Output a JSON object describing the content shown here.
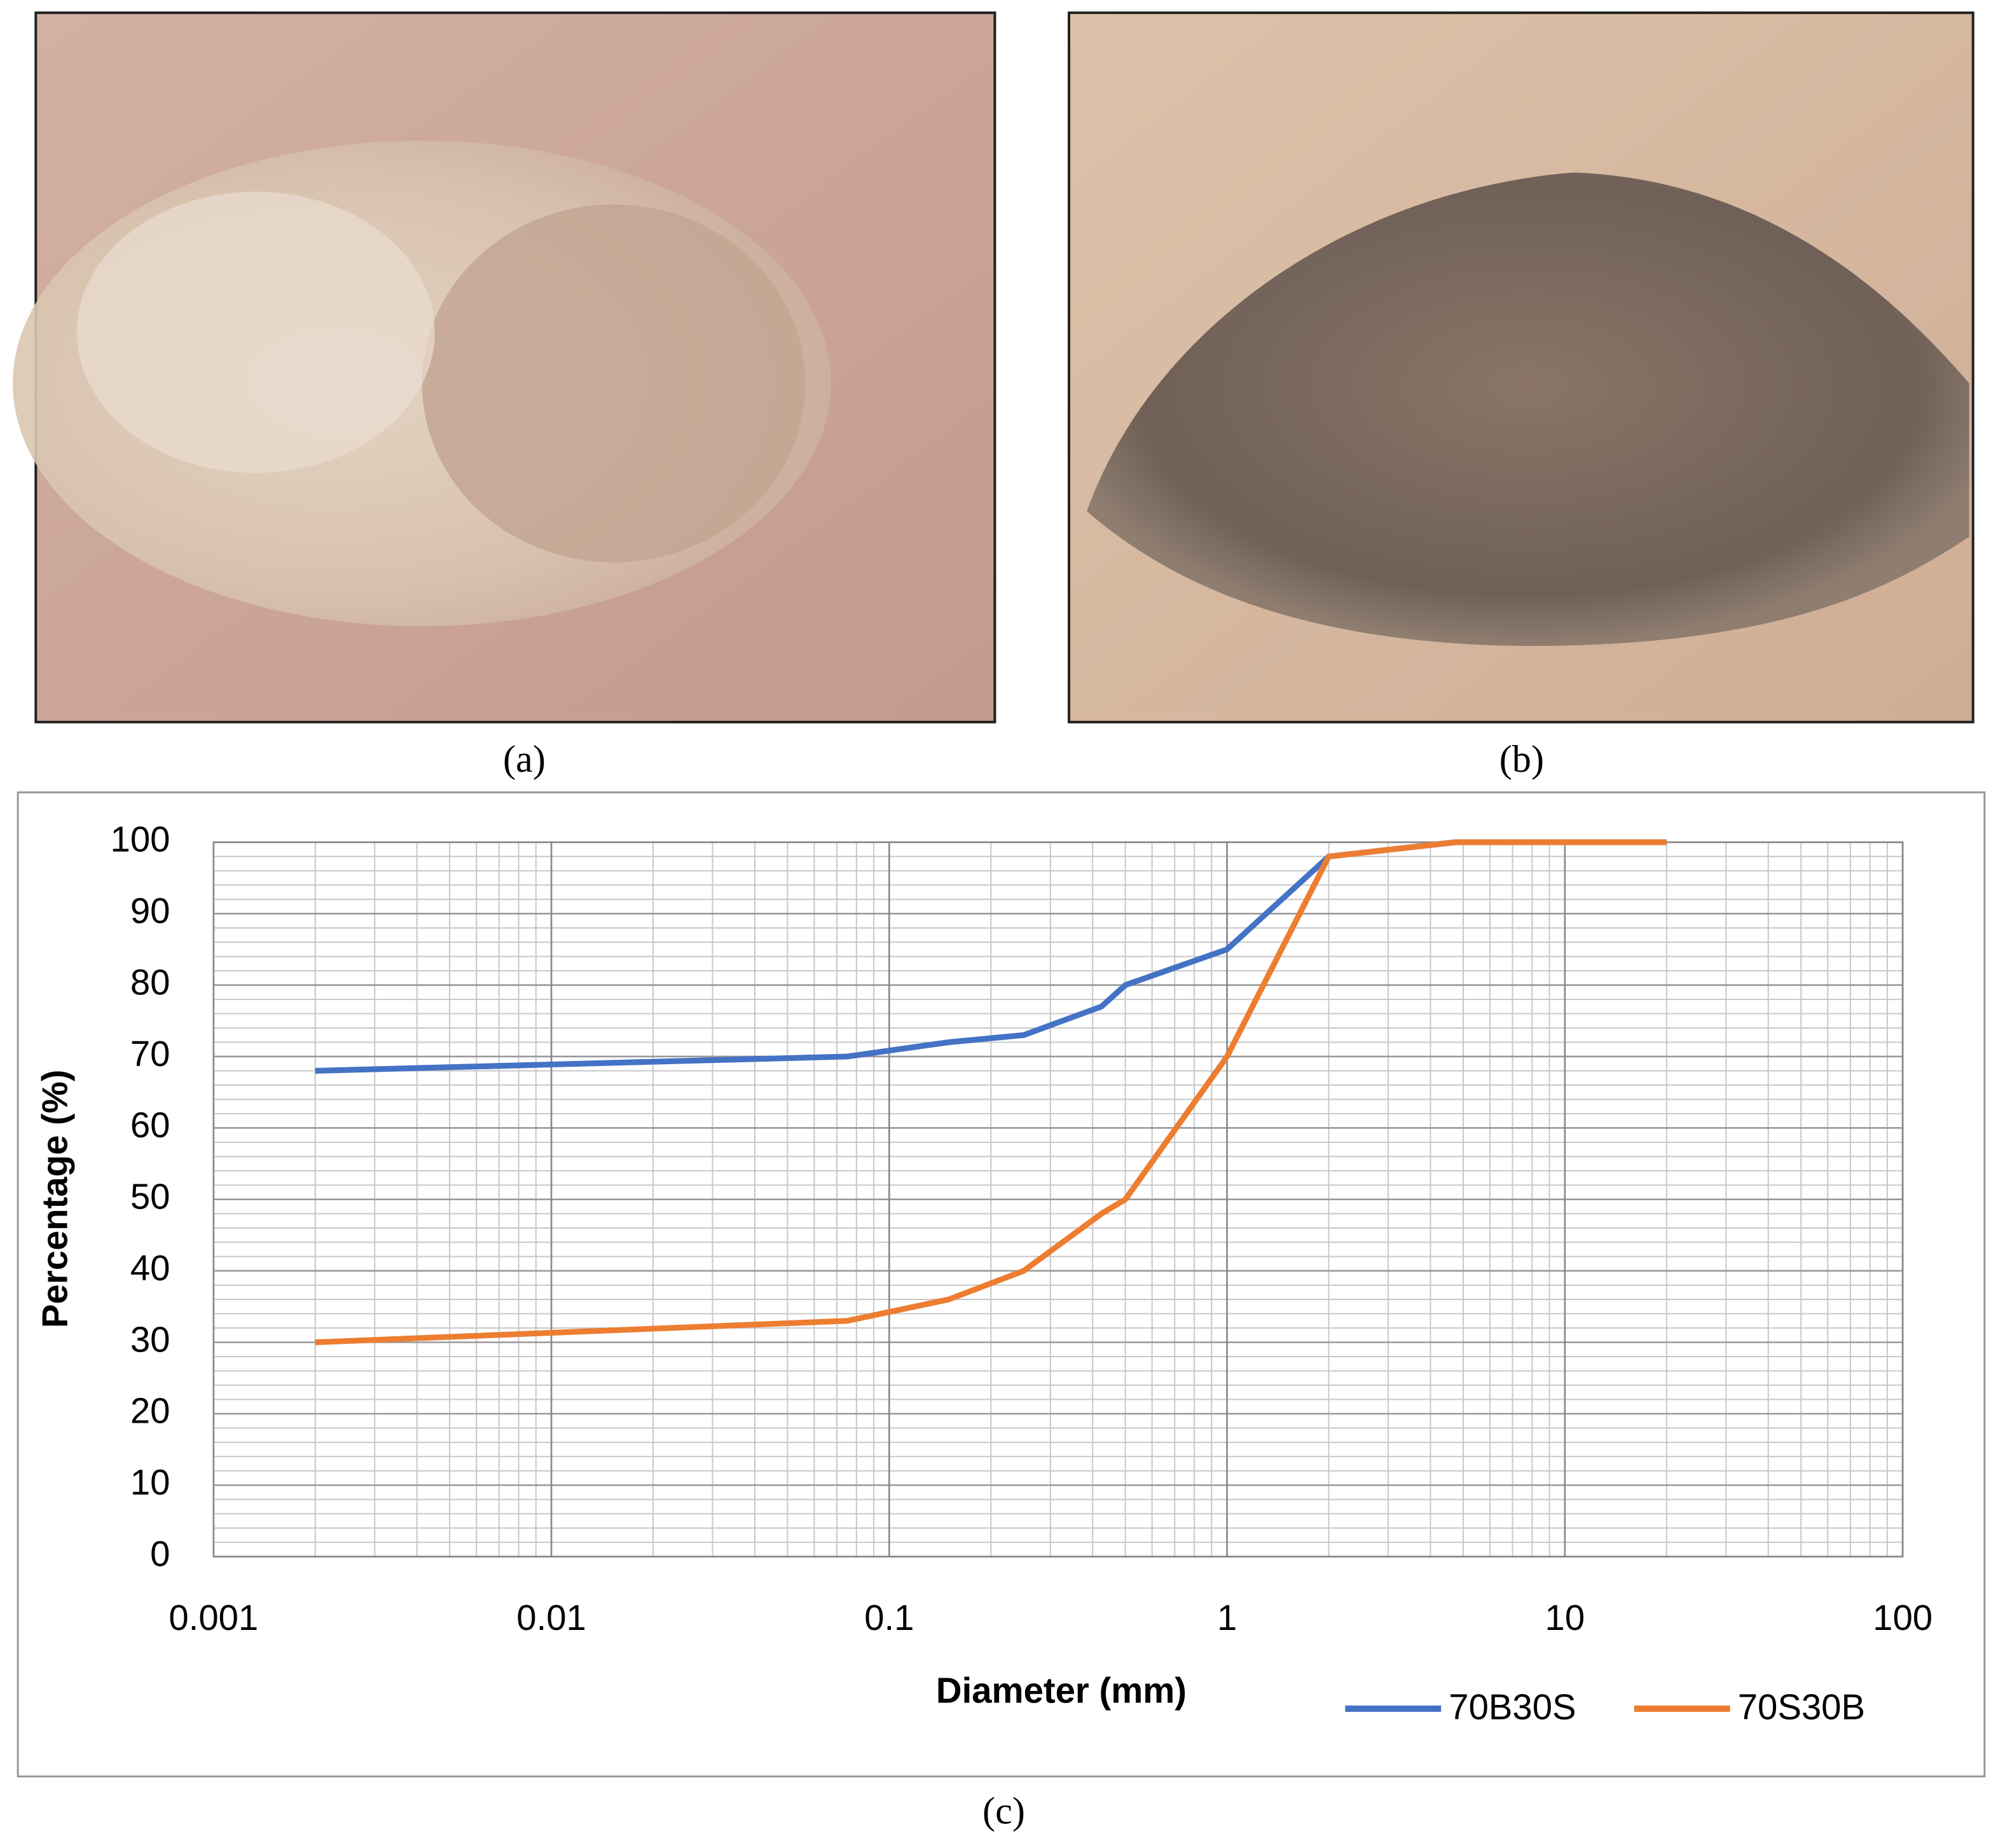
{
  "panels": [
    {
      "label": "(a)"
    },
    {
      "label": "(b)"
    },
    {
      "label": "(c)"
    }
  ],
  "chart_data": {
    "type": "line",
    "x_label": "Diameter (mm)",
    "y_label": "Percentage (%)",
    "x": [
      0.002,
      0.075,
      0.15,
      0.25,
      0.425,
      0.5,
      1,
      2,
      4.75,
      20
    ],
    "series": [
      {
        "name": "70B30S",
        "color": "#4472c4",
        "values": [
          68,
          70,
          72,
          73,
          77,
          80,
          85,
          98,
          100,
          100
        ]
      },
      {
        "name": "70S30B",
        "color": "#ed7d31",
        "values": [
          30,
          33,
          36,
          40,
          48,
          50,
          70,
          98,
          100,
          100
        ]
      }
    ],
    "xlim": [
      0.001,
      100
    ],
    "xticks": [
      0.001,
      0.01,
      0.1,
      1,
      10,
      100
    ],
    "x_log": true,
    "ylim": [
      0,
      100
    ],
    "yticks": [
      0,
      10,
      20,
      30,
      40,
      50,
      60,
      70,
      80,
      90,
      100
    ],
    "grid": true,
    "minor_grid": true,
    "legend": "bottom-right"
  }
}
